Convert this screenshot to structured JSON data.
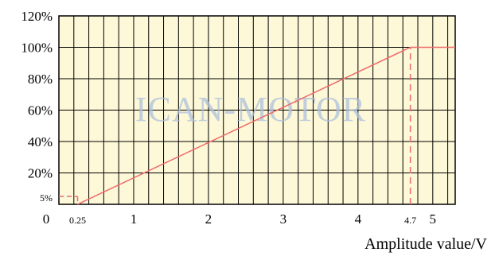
{
  "chart_data": {
    "type": "line",
    "watermark": "ICAN-MOTOR",
    "xlabel": "Amplitude value/V",
    "ylabel": "",
    "xlim": [
      0,
      5.3
    ],
    "ylim": [
      0,
      120
    ],
    "x_ticks": [
      {
        "value": 0,
        "label": "0"
      },
      {
        "value": 0.25,
        "label": "0.25"
      },
      {
        "value": 1,
        "label": "1"
      },
      {
        "value": 2,
        "label": "2"
      },
      {
        "value": 3,
        "label": "3"
      },
      {
        "value": 4,
        "label": "4"
      },
      {
        "value": 4.7,
        "label": "4.7"
      },
      {
        "value": 5,
        "label": "5"
      }
    ],
    "y_ticks": [
      {
        "value": 5,
        "label": "5%"
      },
      {
        "value": 20,
        "label": "20%"
      },
      {
        "value": 40,
        "label": "40%"
      },
      {
        "value": 60,
        "label": "60%"
      },
      {
        "value": 80,
        "label": "80%"
      },
      {
        "value": 100,
        "label": "100%"
      },
      {
        "value": 120,
        "label": "120%"
      }
    ],
    "grid": true,
    "grid_x_step": 0.2,
    "grid_y_step": 20,
    "series": [
      {
        "x": [
          0,
          0.25,
          0.25,
          4.7,
          5.3
        ],
        "y": [
          5,
          5,
          0,
          100,
          100
        ],
        "dashed_segments": [
          0,
          1
        ]
      }
    ],
    "guides": [
      {
        "x": [
          4.7,
          4.7
        ],
        "y": [
          0,
          100
        ],
        "dashed": true
      }
    ],
    "colors": {
      "background": "#fdf8d8",
      "grid": "#000000",
      "line": "#ee6b6b"
    }
  }
}
